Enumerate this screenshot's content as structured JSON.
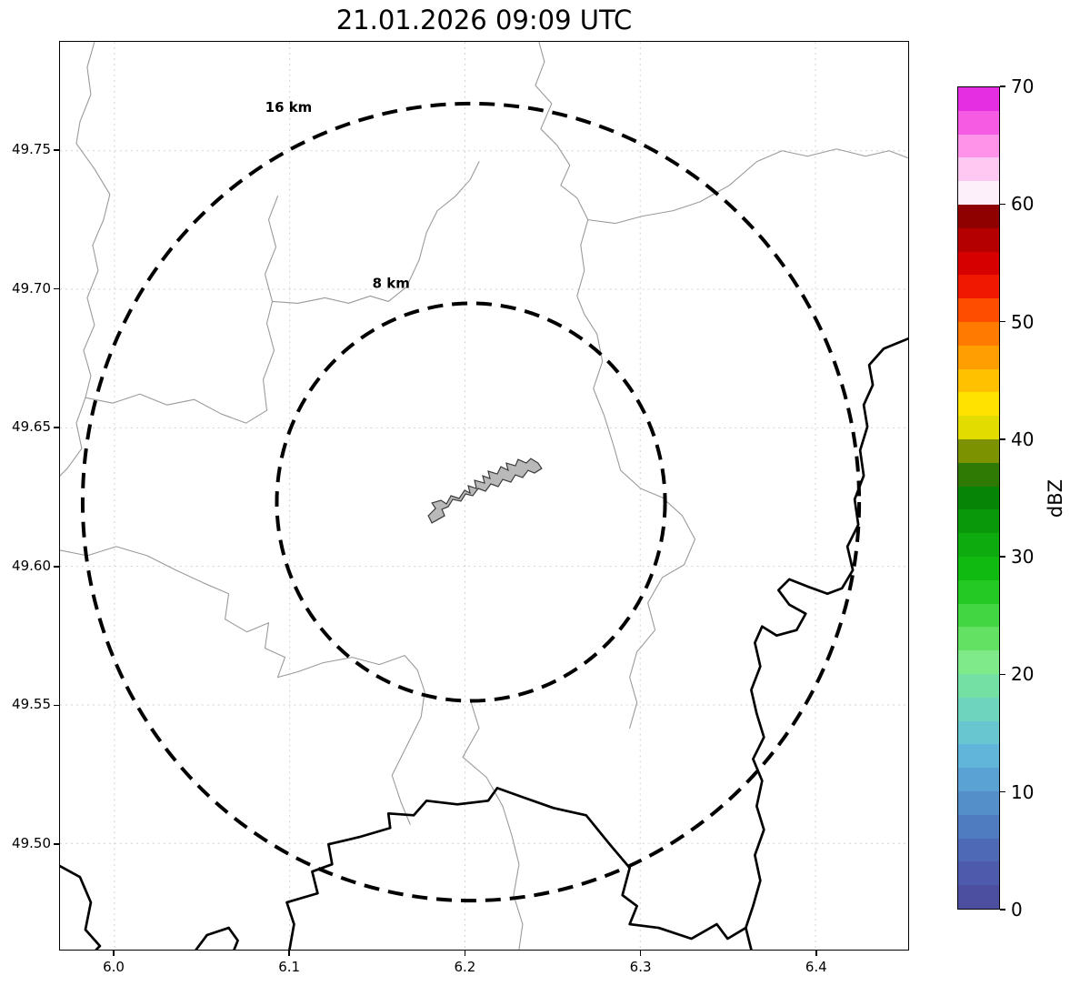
{
  "title": "21.01.2026 09:09 UTC",
  "map": {
    "x_tick_labels": [
      "6.0",
      "6.1",
      "6.2",
      "6.3",
      "6.4"
    ],
    "y_tick_labels": [
      "49.75",
      "49.70",
      "49.65",
      "49.60",
      "49.55",
      "49.50"
    ],
    "rings": {
      "outer_label": "16 km",
      "inner_label": "8 km"
    },
    "footprint_fill": "#b9b9b9",
    "admin_line_color": "#9a9a9a",
    "border_line_color": "#000000"
  },
  "colorbar": {
    "label": "dBZ",
    "tick_labels": [
      "0",
      "10",
      "20",
      "30",
      "40",
      "50",
      "60",
      "70"
    ],
    "min": 0,
    "max": 70,
    "segment_colors_bottom_to_top": [
      "#4c4fa0",
      "#4d5bac",
      "#4e6ab7",
      "#4f7cc1",
      "#548fca",
      "#5aa2d3",
      "#62b5da",
      "#68c6d1",
      "#6dd5bd",
      "#74e1a4",
      "#7eea89",
      "#63e163",
      "#42d642",
      "#24c924",
      "#11ba11",
      "#0dab0d",
      "#099809",
      "#068406",
      "#2e7a05",
      "#7d9200",
      "#e2dc00",
      "#ffe200",
      "#ffc100",
      "#ff9e00",
      "#ff7a00",
      "#ff4d00",
      "#f01800",
      "#d60000",
      "#b40000",
      "#8f0000",
      "#fdf0fb",
      "#ffc8f3",
      "#ff93ea",
      "#f65ce3",
      "#e52ee0"
    ]
  },
  "chart_data": {
    "type": "map",
    "title": "21.01.2026 09:09 UTC",
    "note": "Weather radar reflectivity display; no reflectivity echoes visible, only basemap boundaries, radar site footprint polygon and range rings",
    "x_axis": {
      "ticks": [
        6.0,
        6.1,
        6.2,
        6.3,
        6.4
      ],
      "range": [
        5.969,
        6.453
      ]
    },
    "y_axis": {
      "ticks": [
        49.5,
        49.55,
        49.6,
        49.65,
        49.7,
        49.75
      ],
      "range": [
        49.462,
        49.789
      ]
    },
    "range_rings_km": [
      8,
      16
    ],
    "ring_center_estimate": {
      "lon": 6.203,
      "lat": 49.623
    },
    "colorbar": {
      "label": "dBZ",
      "ticks": [
        0,
        10,
        20,
        30,
        40,
        50,
        60,
        70
      ],
      "range": [
        0,
        70
      ]
    },
    "reflectivity_echoes_visible": false
  }
}
